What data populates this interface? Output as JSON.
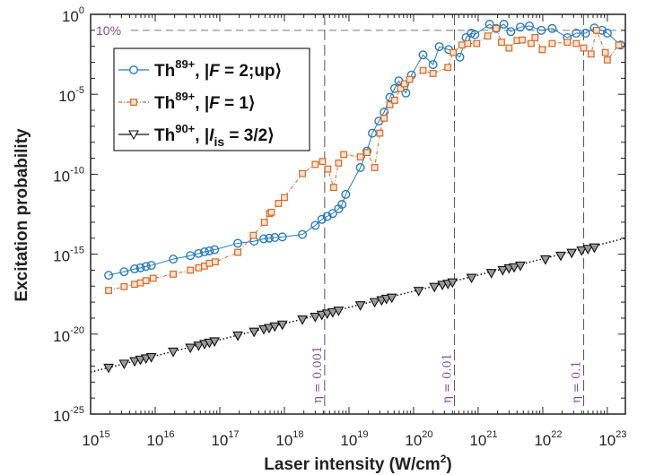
{
  "chart_data": {
    "type": "scatter",
    "xlabel": "Laser intensity (W/cm",
    "xlabel_sup": "2",
    "xlabel_end": ")",
    "ylabel": "Excitation probability",
    "xscale": "log",
    "yscale": "log",
    "xlim": [
      1000000000000000.0,
      1.9e+23
    ],
    "ylim": [
      1e-25,
      1
    ],
    "x_ticks": [
      {
        "base": "10",
        "exp": "15",
        "value": 1000000000000000.0
      },
      {
        "base": "10",
        "exp": "16",
        "value": 1e+16
      },
      {
        "base": "10",
        "exp": "17",
        "value": 1e+17
      },
      {
        "base": "10",
        "exp": "18",
        "value": 1e+18
      },
      {
        "base": "10",
        "exp": "19",
        "value": 1e+19
      },
      {
        "base": "10",
        "exp": "20",
        "value": 1e+20
      },
      {
        "base": "10",
        "exp": "21",
        "value": 1e+21
      },
      {
        "base": "10",
        "exp": "22",
        "value": 1e+22
      },
      {
        "base": "10",
        "exp": "23",
        "value": 1e+23
      }
    ],
    "y_ticks": [
      {
        "base": "10",
        "exp": "0",
        "value": 1
      },
      {
        "base": "10",
        "exp": "-5",
        "value": 1e-05
      },
      {
        "base": "10",
        "exp": "-10",
        "value": 1e-10
      },
      {
        "base": "10",
        "exp": "-15",
        "value": 1e-15
      },
      {
        "base": "10",
        "exp": "-20",
        "value": 1e-20
      },
      {
        "base": "10",
        "exp": "-25",
        "value": 1e-25
      }
    ],
    "grid": false,
    "legend_position": "top-left",
    "series": [
      {
        "legend": {
          "element": "Th",
          "charge": "89+",
          "open": ", |",
          "var": "F",
          "sub": "",
          "rest": " = 2;up⟩"
        },
        "color": "#2b7bb9",
        "marker": "circle",
        "line": "solid",
        "x": [
          1900000000000000.0,
          3300000000000000.0,
          4800000000000000.0,
          5900000000000000.0,
          7200000000000000.0,
          8700000000000000.0,
          1.9e+16,
          3.5e+16,
          4.7e+16,
          5.8e+16,
          6.9e+16,
          8.3e+16,
          1.9e+17,
          3.4e+17,
          4.8e+17,
          5.8e+17,
          7.1e+17,
          9.3e+17,
          1.9e+18,
          3e+18,
          3.8e+18,
          4.6e+18,
          5.6e+18,
          6.9e+18,
          7.8e+18,
          8.9e+18,
          1.5e+19,
          1.9e+19,
          2.3e+19,
          2.9e+19,
          3.5e+19,
          4.3e+19,
          5.1e+19,
          5.9e+19,
          7.6e+19,
          9.3e+19,
          1.4e+20,
          2e+20,
          2.5e+20,
          3.5e+20,
          5.2e+20,
          6.5e+20,
          7.8e+20,
          8.9e+20,
          1.5e+21,
          1.9e+21,
          2.5e+21,
          3.2e+21,
          4.5e+21,
          6.2e+21,
          9.5e+21,
          1.4e+22,
          2.4e+22,
          3.3e+22,
          4.6e+22,
          6.3e+22,
          8.3e+22,
          1e+23,
          1.6e+23
        ],
        "y": [
          4.8e-17,
          7.9e-17,
          1.2e-16,
          1.4e-16,
          1.7e-16,
          2e-16,
          4.9e-16,
          8.1e-16,
          1.1e-15,
          1.4e-15,
          1.6e-15,
          1.9e-15,
          4.8e-15,
          6.5e-15,
          9.1e-15,
          1e-14,
          1.1e-14,
          1.2e-14,
          1.7e-14,
          6.3e-14,
          1.5e-13,
          2.3e-13,
          3.5e-13,
          6.8e-13,
          1.3e-12,
          5.5e-12,
          2.6e-10,
          2.8e-09,
          3.7e-08,
          2.1e-07,
          7.6e-07,
          6.5e-06,
          2.3e-05,
          6.9e-05,
          1.2e-05,
          0.00016,
          0.0029,
          0.00072,
          0.0095,
          0.0062,
          0.0021,
          0.035,
          0.066,
          0.054,
          0.24,
          0.13,
          0.24,
          0.083,
          0.16,
          0.19,
          0.1,
          0.13,
          0.035,
          0.066,
          0.066,
          0.14,
          0.1,
          0.066,
          0.012
        ]
      },
      {
        "legend": {
          "element": "Th",
          "charge": "89+",
          "open": ", |",
          "var": "F",
          "sub": "",
          "rest": " = 1⟩"
        },
        "color": "#d0692a",
        "marker": "square",
        "line": "dashdot",
        "x": [
          1900000000000000.0,
          3300000000000000.0,
          4800000000000000.0,
          5900000000000000.0,
          7200000000000000.0,
          9300000000000000.0,
          1.9e+16,
          3.5e+16,
          4.7e+16,
          5.8e+16,
          6.9e+16,
          8.5e+16,
          1.9e+17,
          3.3e+17,
          4.9e+17,
          5.9e+17,
          6.3e+17,
          8.1e+17,
          1e+18,
          1.9e+18,
          3e+18,
          3.9e+18,
          4.7e+18,
          5.8e+18,
          6.9e+18,
          8.3e+18,
          1.5e+19,
          1.9e+19,
          2.5e+19,
          3e+19,
          3.5e+19,
          4.3e+19,
          5.1e+19,
          6.3e+19,
          7.2e+19,
          8.7e+19,
          1.4e+20,
          2e+20,
          3.4e+20,
          4.1e+20,
          5.6e+20,
          6.9e+20,
          9.5e+20,
          1.4e+21,
          1.9e+21,
          2.3e+21,
          3e+21,
          4e+21,
          4.8e+21,
          6.6e+21,
          7.6e+21,
          9.8e+21,
          1.4e+22,
          2.4e+22,
          3.3e+22,
          4.3e+22,
          5.6e+22,
          6.8e+22,
          9.3e+22,
          1e+23,
          1.5e+23
        ],
        "y": [
          5.4e-18,
          9.3e-18,
          1.3e-17,
          1.6e-17,
          2.2e-17,
          3.1e-17,
          5.6e-17,
          1e-16,
          1.4e-16,
          1.8e-16,
          2.7e-16,
          3.3e-16,
          1.3e-15,
          1.5e-14,
          9.8e-14,
          3.5e-13,
          4.2e-13,
          1.5e-12,
          3.5e-12,
          1.1e-10,
          4.1e-10,
          6.3e-10,
          2.1e-10,
          1.5e-11,
          5e-10,
          1.7e-09,
          1.2e-09,
          2.3e-09,
          2.6e-10,
          3.7e-08,
          3.2e-07,
          2.2e-06,
          4.2e-06,
          2.3e-05,
          4.5e-05,
          8.5e-05,
          0.00031,
          0.0002,
          0.00048,
          0.0041,
          0.012,
          0.015,
          0.015,
          0.044,
          0.13,
          0.018,
          0.0078,
          0.023,
          0.025,
          0.015,
          0.035,
          0.0062,
          0.015,
          0.018,
          0.015,
          0.0078,
          0.0033,
          0.1,
          0.0041,
          0.0014,
          0.012
        ]
      },
      {
        "legend": {
          "element": "Th",
          "charge": "90+",
          "open": ", |",
          "var": "I",
          "sub": "is",
          "rest": " = 3/2⟩"
        },
        "color": "#111111",
        "marker": "triangle-down",
        "marker_fill": "#9a9a9a",
        "line": "dotted",
        "x": [
          1900000000000000.0,
          3300000000000000.0,
          4800000000000000.0,
          5900000000000000.0,
          7200000000000000.0,
          8700000000000000.0,
          1.9e+16,
          3.5e+16,
          4.7e+16,
          5.8e+16,
          6.9e+16,
          8.3e+16,
          1.9e+17,
          3.4e+17,
          4.8e+17,
          5.8e+17,
          7.1e+17,
          9.3e+17,
          1.9e+18,
          3e+18,
          3.8e+18,
          4.6e+18,
          5.6e+18,
          6.9e+18,
          1.5e+19,
          2.5e+19,
          3.2e+19,
          3.8e+19,
          4.6e+19,
          1.2e+20,
          2.1e+20,
          2.8e+20,
          3.4e+20,
          4e+20,
          7.9e+20,
          1.6e+21,
          2.4e+21,
          3e+21,
          3.6e+21,
          4.5e+21,
          1.1e+22,
          1.9e+22,
          2.8e+22,
          4e+22,
          5e+22,
          6.3e+22
        ],
        "y": [
          7.8e-23,
          1.4e-22,
          2e-22,
          2.5e-22,
          3e-22,
          3.6e-22,
          7.9e-22,
          1.4e-21,
          1.9e-21,
          2.4e-21,
          2.9e-21,
          3.5e-21,
          8.1e-21,
          1.4e-20,
          2e-20,
          2.4e-20,
          3e-20,
          3.9e-20,
          8.1e-20,
          1.2e-19,
          1.6e-19,
          1.9e-19,
          2.3e-19,
          2.9e-19,
          6.3e-19,
          1e-18,
          1.3e-18,
          1.6e-18,
          1.9e-18,
          5e-18,
          8.9e-18,
          1.2e-17,
          1.4e-17,
          1.7e-17,
          3.3e-17,
          6.6e-17,
          1e-16,
          1.3e-16,
          1.5e-16,
          1.9e-16,
          4.7e-16,
          7.9e-16,
          1.2e-15,
          1.7e-15,
          2.1e-15,
          2.6e-15
        ],
        "fit_line": {
          "x": [
            1000000000000000.0,
            1.9e+23
          ],
          "y": [
            4.2e-23,
            1e-14
          ]
        }
      }
    ],
    "reference_lines": {
      "color": "#7a4f8a",
      "horizontal": [
        {
          "value": 0.1,
          "label": "10%"
        }
      ],
      "vertical": [
        {
          "value": 4.2e+18,
          "label": "η = 0.001"
        },
        {
          "value": 4.3e+20,
          "label": "η = 0.01"
        },
        {
          "value": 4.3e+22,
          "label": "η = 0.1"
        }
      ]
    }
  }
}
